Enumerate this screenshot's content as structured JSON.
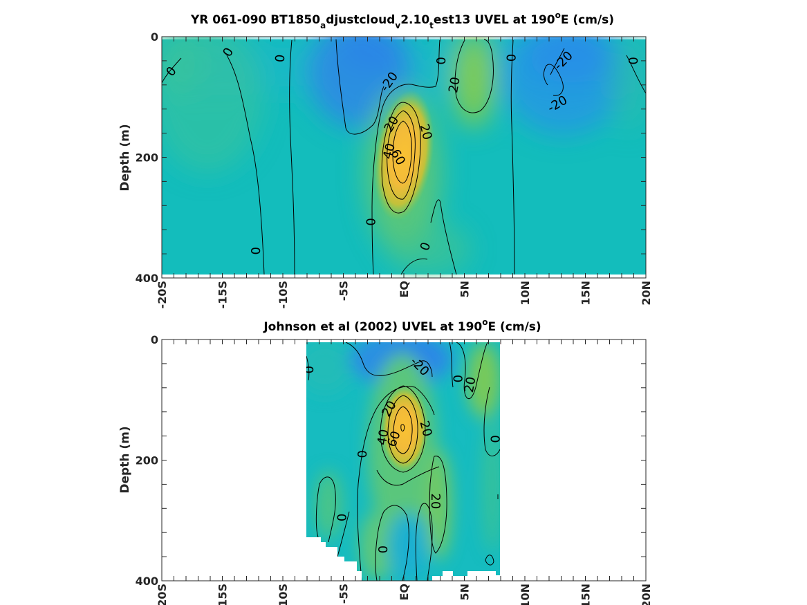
{
  "chart_data": [
    {
      "type": "heatmap",
      "title_parts": [
        {
          "t": "YR 061-090 BT1850"
        },
        {
          "t": "a",
          "sub": true
        },
        {
          "t": "djustcloud"
        },
        {
          "t": "v",
          "sub": true
        },
        {
          "t": "2.10"
        },
        {
          "t": "t",
          "sub": true
        },
        {
          "t": "est13 UVEL at 190"
        },
        {
          "t": "o",
          "sup": true
        },
        {
          "t": "E (cm/s)"
        }
      ],
      "ylabel": "Depth (m)",
      "xlim": [
        -20,
        20
      ],
      "ylim": [
        0,
        400
      ],
      "x_ticks": [
        -20,
        -15,
        -10,
        -5,
        0,
        5,
        10,
        15,
        20
      ],
      "x_tick_labels": [
        "-20S",
        "-15S",
        "-10S",
        "-5S",
        "EQ",
        "5N",
        "10N",
        "15N",
        "20N"
      ],
      "y_ticks": [
        0,
        200,
        400
      ],
      "y_tick_labels": [
        "0",
        "200",
        "400"
      ],
      "data_x_range": [
        -20,
        20
      ],
      "data_y_range": [
        5,
        395
      ],
      "color_scale": "parula-like, approx -40 to 80 cm/s",
      "contour_labels": [
        {
          "text": "0",
          "x": -19.2,
          "y": 58,
          "angle": -50
        },
        {
          "text": "0",
          "x": -14.5,
          "y": 26,
          "angle": -60
        },
        {
          "text": "0",
          "x": -10.2,
          "y": 36,
          "angle": -85
        },
        {
          "text": "0",
          "x": -12.2,
          "y": 355,
          "angle": -90
        },
        {
          "text": "-20",
          "x": -1.2,
          "y": 75,
          "angle": -55
        },
        {
          "text": "20",
          "x": -1.0,
          "y": 145,
          "angle": -60
        },
        {
          "text": "20",
          "x": 1.8,
          "y": 158,
          "angle": 75
        },
        {
          "text": "40",
          "x": -1.2,
          "y": 190,
          "angle": -75
        },
        {
          "text": "60",
          "x": -0.5,
          "y": 200,
          "angle": 60
        },
        {
          "text": "0",
          "x": -2.7,
          "y": 307,
          "angle": -90
        },
        {
          "text": "0",
          "x": 1.8,
          "y": 348,
          "angle": -70
        },
        {
          "text": "0",
          "x": 3.1,
          "y": 40,
          "angle": -90
        },
        {
          "text": "20",
          "x": 4.2,
          "y": 80,
          "angle": -80
        },
        {
          "text": "0",
          "x": 8.9,
          "y": 35,
          "angle": -90
        },
        {
          "text": "-20",
          "x": 13.2,
          "y": 40,
          "angle": -45
        },
        {
          "text": "-20",
          "x": 12.7,
          "y": 112,
          "angle": -30
        },
        {
          "text": "0",
          "x": 19.0,
          "y": 40,
          "angle": -90
        }
      ]
    },
    {
      "type": "heatmap",
      "title_parts": [
        {
          "t": "Johnson et al (2002) UVEL at 190"
        },
        {
          "t": "o",
          "sup": true
        },
        {
          "t": "E (cm/s)"
        }
      ],
      "ylabel": "Depth (m)",
      "xlim": [
        -20,
        20
      ],
      "ylim": [
        0,
        400
      ],
      "x_ticks": [
        -20,
        -15,
        -10,
        -5,
        0,
        5,
        10,
        15,
        20
      ],
      "x_tick_labels": [
        "-20S",
        "-15S",
        "-10S",
        "-5S",
        "EQ",
        "5N",
        "10N",
        "15N",
        "20N"
      ],
      "y_ticks": [
        0,
        200,
        400
      ],
      "y_tick_labels": [
        "0",
        "200",
        "400"
      ],
      "data_x_range": [
        -8,
        8
      ],
      "data_y_range": [
        5,
        400
      ],
      "color_scale": "parula-like, approx -40 to 80 cm/s",
      "contour_labels": [
        {
          "text": "0",
          "x": -7.8,
          "y": 50,
          "angle": -90
        },
        {
          "text": "-20",
          "x": 1.3,
          "y": 45,
          "angle": 45
        },
        {
          "text": "0",
          "x": 4.5,
          "y": 65,
          "angle": -90
        },
        {
          "text": "20",
          "x": 5.5,
          "y": 75,
          "angle": -80
        },
        {
          "text": "20",
          "x": -1.2,
          "y": 115,
          "angle": -60
        },
        {
          "text": "20",
          "x": 1.8,
          "y": 148,
          "angle": 75
        },
        {
          "text": "40",
          "x": -1.7,
          "y": 162,
          "angle": -80
        },
        {
          "text": "60",
          "x": -0.8,
          "y": 165,
          "angle": -70
        },
        {
          "text": "0",
          "x": -3.4,
          "y": 190,
          "angle": -90
        },
        {
          "text": "0",
          "x": 7.6,
          "y": 165,
          "angle": -90
        },
        {
          "text": "20",
          "x": 2.6,
          "y": 268,
          "angle": 90
        },
        {
          "text": "0",
          "x": -5.1,
          "y": 295,
          "angle": -90
        },
        {
          "text": "0",
          "x": -1.7,
          "y": 348,
          "angle": -90
        }
      ]
    }
  ]
}
